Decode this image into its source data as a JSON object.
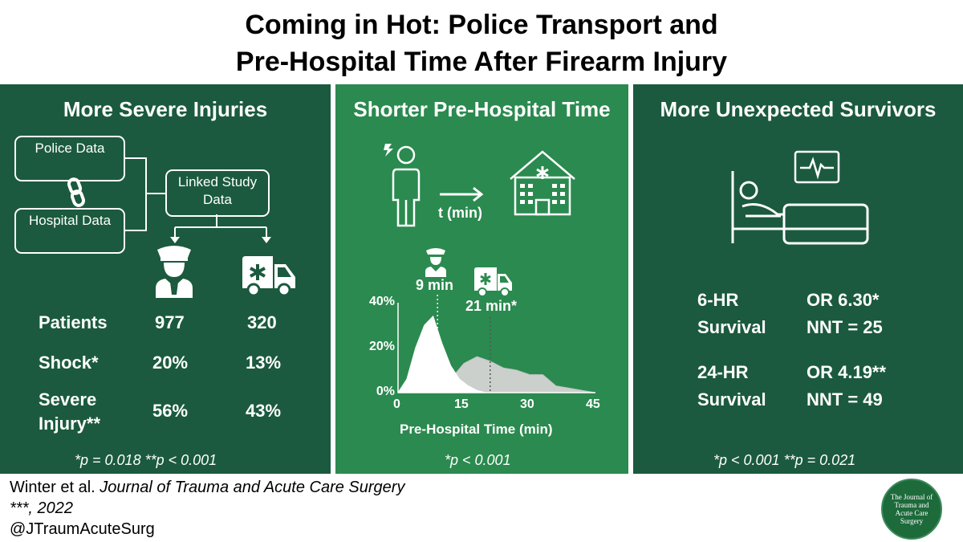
{
  "title": {
    "line1": "Coming in Hot: Police Transport and",
    "line2": "Pre-Hospital Time After Firearm Injury"
  },
  "panel1": {
    "title": "More Severe Injuries",
    "police_box": "Police Data",
    "hospital_box": "Hospital Data",
    "linked_box": "Linked Study Data",
    "rows": [
      {
        "label": "Patients",
        "police": "977",
        "ems": "320"
      },
      {
        "label": "Shock*",
        "police": "20%",
        "ems": "13%"
      },
      {
        "label": "Severe Injury**",
        "police": "56%",
        "ems": "43%"
      }
    ],
    "footnote": "*p = 0.018  **p < 0.001",
    "icons": [
      "police-officer-icon",
      "ambulance-icon",
      "chain-link-icon"
    ]
  },
  "panel2": {
    "title": "Shorter Pre-Hospital Time",
    "time_label": "t (min)",
    "police_median": "9 min",
    "ems_median": "21 min*",
    "footnote": "*p < 0.001",
    "icons": [
      "injured-person-icon",
      "hospital-icon",
      "police-officer-icon",
      "ambulance-icon"
    ]
  },
  "panel3": {
    "title": "More Unexpected Survivors",
    "stats": [
      {
        "label_line1": "6-HR",
        "label_line2": "Survival",
        "or": "OR 6.30*",
        "nnt": "NNT = 25"
      },
      {
        "label_line1": "24-HR",
        "label_line2": "Survival",
        "or": "OR 4.19**",
        "nnt": "NNT = 49"
      }
    ],
    "footnote": "*p < 0.001  **p = 0.021",
    "icons": [
      "hospital-bed-icon",
      "heart-monitor-icon"
    ]
  },
  "footer": {
    "authors": "Winter et al.",
    "journal": "Journal of Trauma and Acute Care Surgery",
    "year": "***, 2022",
    "handle": "@JTraumAcuteSurg",
    "seal_text": "The Journal of Trauma and Acute Care Surgery"
  },
  "chart_data": {
    "type": "area",
    "xlabel": "Pre-Hospital Time (min)",
    "ylabel": "",
    "xlim": [
      0,
      45
    ],
    "ylim": [
      0,
      40
    ],
    "x_ticks": [
      "0",
      "15",
      "30",
      "45"
    ],
    "y_ticks": [
      "0%",
      "20%",
      "40%"
    ],
    "series": [
      {
        "color": "#ffffff",
        "median": 9,
        "points": [
          [
            0,
            0
          ],
          [
            2,
            6
          ],
          [
            4,
            20
          ],
          [
            6,
            30
          ],
          [
            8,
            34
          ],
          [
            10,
            22
          ],
          [
            12,
            12
          ],
          [
            14,
            6
          ],
          [
            16,
            3
          ],
          [
            18,
            1
          ],
          [
            20,
            0
          ]
        ]
      },
      {
        "color": "#d4d4d4",
        "median": 21,
        "points": [
          [
            0,
            0
          ],
          [
            4,
            1
          ],
          [
            8,
            3
          ],
          [
            12,
            6
          ],
          [
            15,
            13
          ],
          [
            18,
            16
          ],
          [
            21,
            14
          ],
          [
            24,
            11
          ],
          [
            27,
            10
          ],
          [
            30,
            8
          ],
          [
            33,
            8
          ],
          [
            36,
            3
          ],
          [
            39,
            2
          ],
          [
            42,
            1
          ],
          [
            45,
            0
          ]
        ]
      }
    ]
  }
}
